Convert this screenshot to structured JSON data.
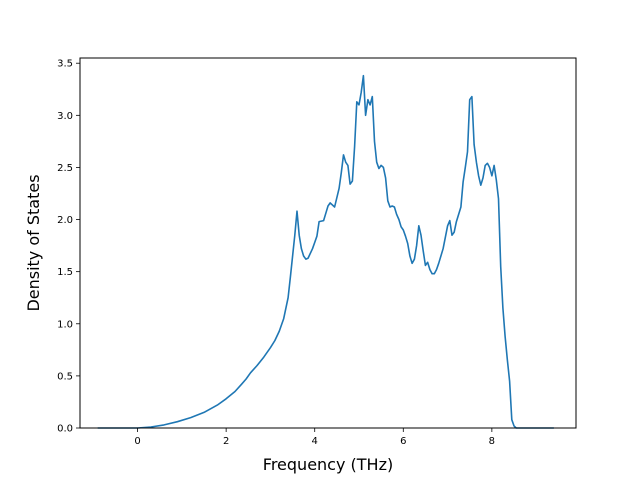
{
  "chart_data": {
    "type": "line",
    "title": "",
    "xlabel": "Frequency (THz)",
    "ylabel": "Density of States",
    "xlim": [
      -1.3,
      9.9
    ],
    "ylim": [
      0,
      3.55
    ],
    "xticks": [
      0,
      2,
      4,
      6,
      8
    ],
    "xtick_labels": [
      "0",
      "2",
      "4",
      "6",
      "8"
    ],
    "yticks": [
      0,
      0.5,
      1.0,
      1.5,
      2.0,
      2.5,
      3.0,
      3.5
    ],
    "ytick_labels": [
      "0.0",
      "0.5",
      "1.0",
      "1.5",
      "2.0",
      "2.5",
      "3.0",
      "3.5"
    ],
    "grid": false,
    "legend": "none",
    "series": [
      {
        "color": "#1f77b4",
        "x": [
          -0.9,
          0.0,
          0.3,
          0.6,
          0.9,
          1.2,
          1.5,
          1.8,
          2.0,
          2.2,
          2.35,
          2.45,
          2.55,
          2.7,
          2.85,
          3.0,
          3.1,
          3.2,
          3.3,
          3.4,
          3.45,
          3.5,
          3.55,
          3.6,
          3.65,
          3.7,
          3.75,
          3.8,
          3.85,
          3.95,
          4.0,
          4.05,
          4.1,
          4.2,
          4.25,
          4.3,
          4.35,
          4.45,
          4.55,
          4.6,
          4.65,
          4.7,
          4.75,
          4.8,
          4.85,
          4.9,
          4.95,
          5.0,
          5.05,
          5.1,
          5.15,
          5.2,
          5.25,
          5.3,
          5.35,
          5.4,
          5.45,
          5.5,
          5.55,
          5.6,
          5.65,
          5.7,
          5.75,
          5.8,
          5.85,
          5.9,
          5.95,
          6.0,
          6.05,
          6.1,
          6.15,
          6.2,
          6.25,
          6.3,
          6.35,
          6.4,
          6.45,
          6.5,
          6.55,
          6.6,
          6.65,
          6.7,
          6.75,
          6.8,
          6.9,
          7.0,
          7.05,
          7.1,
          7.15,
          7.2,
          7.3,
          7.35,
          7.4,
          7.45,
          7.5,
          7.55,
          7.6,
          7.65,
          7.7,
          7.75,
          7.8,
          7.85,
          7.9,
          7.95,
          8.0,
          8.05,
          8.1,
          8.15,
          8.2,
          8.25,
          8.3,
          8.35,
          8.4,
          8.45,
          8.5,
          8.55,
          8.6,
          8.65,
          8.7,
          9.0,
          9.4
        ],
        "y": [
          0.0,
          0.0,
          0.01,
          0.03,
          0.06,
          0.1,
          0.15,
          0.22,
          0.28,
          0.35,
          0.42,
          0.47,
          0.53,
          0.6,
          0.68,
          0.77,
          0.84,
          0.93,
          1.05,
          1.25,
          1.45,
          1.65,
          1.85,
          2.08,
          1.85,
          1.72,
          1.65,
          1.62,
          1.63,
          1.72,
          1.78,
          1.84,
          1.98,
          1.99,
          2.06,
          2.13,
          2.16,
          2.12,
          2.3,
          2.45,
          2.62,
          2.55,
          2.52,
          2.34,
          2.37,
          2.7,
          3.13,
          3.1,
          3.22,
          3.38,
          3.0,
          3.15,
          3.1,
          3.18,
          2.75,
          2.55,
          2.49,
          2.52,
          2.5,
          2.4,
          2.18,
          2.12,
          2.13,
          2.12,
          2.05,
          2.0,
          1.93,
          1.9,
          1.84,
          1.77,
          1.65,
          1.58,
          1.62,
          1.75,
          1.94,
          1.85,
          1.7,
          1.56,
          1.59,
          1.52,
          1.48,
          1.48,
          1.52,
          1.58,
          1.72,
          1.94,
          1.99,
          1.85,
          1.88,
          1.98,
          2.12,
          2.36,
          2.5,
          2.65,
          3.15,
          3.18,
          2.72,
          2.55,
          2.42,
          2.33,
          2.4,
          2.52,
          2.54,
          2.5,
          2.42,
          2.52,
          2.38,
          2.2,
          1.55,
          1.15,
          0.88,
          0.65,
          0.45,
          0.08,
          0.02,
          0.0,
          0.0,
          0.0,
          0.0,
          0.0,
          0.0
        ]
      }
    ]
  }
}
